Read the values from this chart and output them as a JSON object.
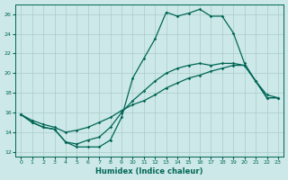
{
  "xlabel": "Humidex (Indice chaleur)",
  "ylabel": "",
  "bg_color": "#cce8e8",
  "line_color": "#006655",
  "grid_color": "#aacccc",
  "xlim": [
    -0.5,
    23.5
  ],
  "ylim": [
    11.5,
    27.0
  ],
  "xticks": [
    0,
    1,
    2,
    3,
    4,
    5,
    6,
    7,
    8,
    9,
    10,
    11,
    12,
    13,
    14,
    15,
    16,
    17,
    18,
    19,
    20,
    21,
    22,
    23
  ],
  "yticks": [
    12,
    14,
    16,
    18,
    20,
    22,
    24,
    26
  ],
  "line1_x": [
    0,
    1,
    2,
    3,
    4,
    5,
    6,
    7,
    8,
    9,
    10,
    11,
    12,
    13,
    14,
    15,
    16,
    17,
    18,
    19,
    20,
    21,
    22,
    23
  ],
  "line1_y": [
    15.8,
    15.0,
    14.5,
    14.3,
    13.0,
    12.5,
    12.5,
    12.5,
    13.2,
    15.5,
    19.5,
    21.5,
    23.5,
    26.2,
    25.8,
    26.1,
    26.5,
    25.8,
    25.8,
    24.1,
    21.0,
    19.2,
    17.5,
    17.5
  ],
  "line2_x": [
    0,
    1,
    2,
    3,
    4,
    5,
    6,
    7,
    8,
    9,
    10,
    11,
    12,
    13,
    14,
    15,
    16,
    17,
    18,
    19,
    20,
    21,
    22,
    23
  ],
  "line2_y": [
    15.8,
    15.0,
    14.5,
    14.3,
    13.0,
    12.8,
    13.2,
    13.5,
    14.5,
    16.0,
    17.2,
    18.2,
    19.2,
    20.0,
    20.5,
    20.8,
    21.0,
    20.8,
    21.0,
    21.0,
    20.8,
    19.2,
    17.5,
    17.5
  ],
  "line3_x": [
    0,
    1,
    2,
    3,
    4,
    5,
    6,
    7,
    8,
    9,
    10,
    11,
    12,
    13,
    14,
    15,
    16,
    17,
    18,
    19,
    20,
    21,
    22,
    23
  ],
  "line3_y": [
    15.8,
    15.2,
    14.8,
    14.5,
    14.0,
    14.2,
    14.5,
    15.0,
    15.5,
    16.2,
    16.8,
    17.2,
    17.8,
    18.5,
    19.0,
    19.5,
    19.8,
    20.2,
    20.5,
    20.8,
    20.8,
    19.2,
    17.8,
    17.5
  ],
  "xlabel_fontsize": 6,
  "tick_fontsize": 4.5,
  "marker": "D",
  "markersize": 1.8,
  "linewidth": 0.9
}
